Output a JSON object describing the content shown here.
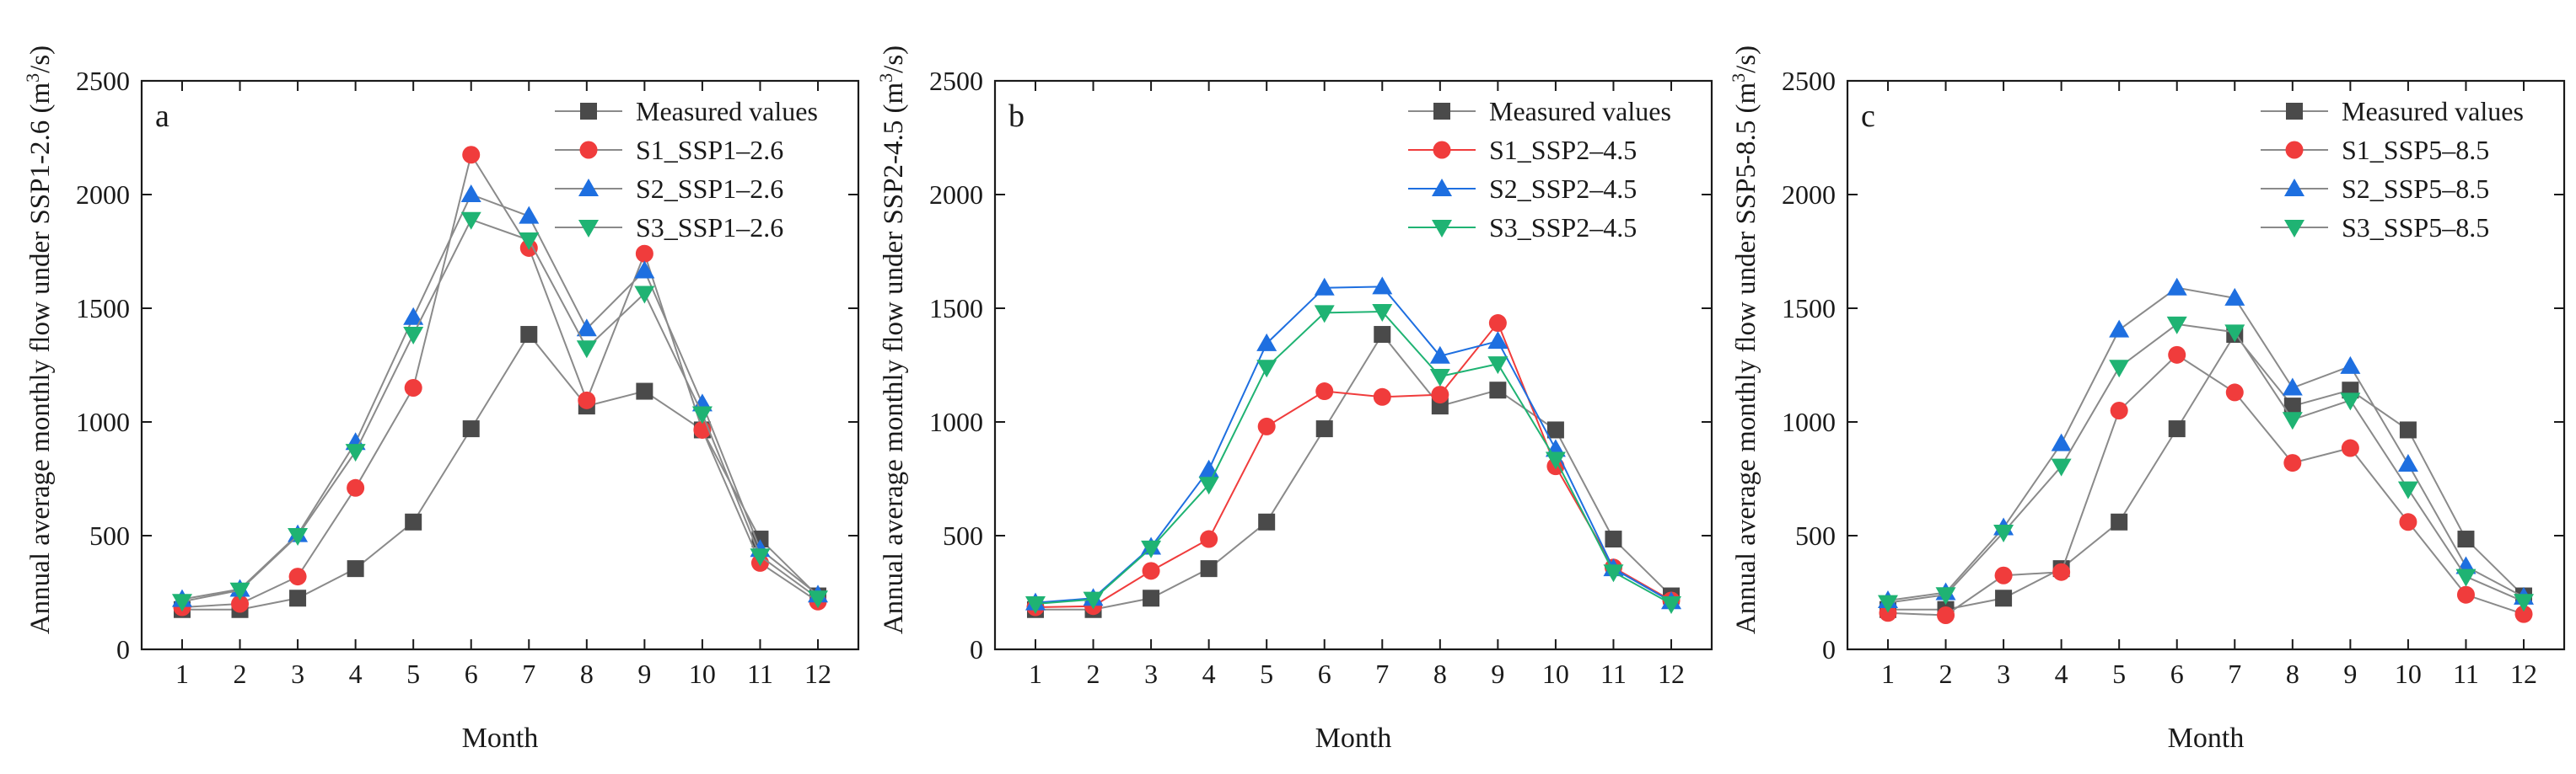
{
  "colors": {
    "measured": "#4a4a4a",
    "s1": "#f03c3c",
    "s2": "#1e6fe0",
    "s3": "#1fb373",
    "axis": "#1a1a1a",
    "connector": "#8a8a8a"
  },
  "chart_data": [
    {
      "type": "line",
      "panel_label": "a",
      "xlabel": "Month",
      "ylabel_prefix": "Annual average monthly flow under SSP1-2.6",
      "ylabel_unit_open": "(m",
      "ylabel_unit_sup": "3",
      "ylabel_unit_close": "/s)",
      "categories": [
        "1",
        "2",
        "3",
        "4",
        "5",
        "6",
        "7",
        "8",
        "9",
        "10",
        "11",
        "12"
      ],
      "ylim": [
        0,
        2500
      ],
      "yticks": [
        "0",
        "500",
        "1000",
        "1500",
        "2000",
        "2500"
      ],
      "legend_position": "top-right",
      "series": [
        {
          "name": "Measured values",
          "key": "measured",
          "marker": "square",
          "values": [
            175,
            175,
            225,
            355,
            560,
            970,
            1385,
            1070,
            1135,
            965,
            485,
            235
          ]
        },
        {
          "name": "S1_SSP1–2.6",
          "key": "s1",
          "marker": "circle",
          "values": [
            185,
            200,
            320,
            710,
            1150,
            2175,
            1765,
            1095,
            1740,
            965,
            380,
            210
          ]
        },
        {
          "name": "S2_SSP1–2.6",
          "key": "s2",
          "marker": "triangle-up",
          "values": [
            220,
            265,
            505,
            910,
            1460,
            2000,
            1905,
            1410,
            1665,
            1080,
            440,
            240
          ]
        },
        {
          "name": "S3_SSP1–2.6",
          "key": "s3",
          "marker": "triangle-down",
          "values": [
            210,
            260,
            500,
            870,
            1385,
            1890,
            1800,
            1325,
            1565,
            1035,
            410,
            225
          ]
        }
      ]
    },
    {
      "type": "line",
      "panel_label": "b",
      "xlabel": "Month",
      "ylabel_prefix": "Annual average monthly flow under SSP2-4.5",
      "ylabel_unit_open": "(m",
      "ylabel_unit_sup": "3",
      "ylabel_unit_close": "/s)",
      "categories": [
        "1",
        "2",
        "3",
        "4",
        "5",
        "6",
        "7",
        "8",
        "9",
        "10",
        "11",
        "12"
      ],
      "ylim": [
        0,
        2500
      ],
      "yticks": [
        "0",
        "500",
        "1000",
        "1500",
        "2000",
        "2500"
      ],
      "legend_position": "top-right",
      "series": [
        {
          "name": "Measured values",
          "key": "measured",
          "marker": "square",
          "values": [
            175,
            175,
            225,
            355,
            560,
            970,
            1385,
            1070,
            1140,
            965,
            485,
            235
          ]
        },
        {
          "name": "S1_SSP2–4.5",
          "key": "s1",
          "marker": "circle",
          "values": [
            185,
            190,
            345,
            485,
            980,
            1135,
            1110,
            1120,
            1435,
            805,
            360,
            215
          ]
        },
        {
          "name": "S2_SSP2–4.5",
          "key": "s2",
          "marker": "triangle-up",
          "values": [
            205,
            225,
            450,
            790,
            1345,
            1590,
            1595,
            1290,
            1355,
            880,
            355,
            210
          ]
        },
        {
          "name": "S3_SSP2–4.5",
          "key": "s3",
          "marker": "triangle-down",
          "values": [
            200,
            220,
            445,
            725,
            1240,
            1480,
            1485,
            1200,
            1255,
            835,
            340,
            200
          ]
        }
      ]
    },
    {
      "type": "line",
      "panel_label": "c",
      "xlabel": "Month",
      "ylabel_prefix": "Annual average monthly flow under SSP5-8.5",
      "ylabel_unit_open": "(m",
      "ylabel_unit_sup": "3",
      "ylabel_unit_close": "/s)",
      "categories": [
        "1",
        "2",
        "3",
        "4",
        "5",
        "6",
        "7",
        "8",
        "9",
        "10",
        "11",
        "12"
      ],
      "ylim": [
        0,
        2500
      ],
      "yticks": [
        "0",
        "500",
        "1000",
        "1500",
        "2000",
        "2500"
      ],
      "legend_position": "top-right",
      "series": [
        {
          "name": "Measured values",
          "key": "measured",
          "marker": "square",
          "values": [
            175,
            175,
            225,
            355,
            560,
            970,
            1385,
            1070,
            1140,
            965,
            485,
            235
          ]
        },
        {
          "name": "S1_SSP5–8.5",
          "key": "s1",
          "marker": "circle",
          "values": [
            160,
            150,
            325,
            340,
            1050,
            1295,
            1130,
            820,
            885,
            560,
            240,
            155
          ]
        },
        {
          "name": "S2_SSP5–8.5",
          "key": "s2",
          "marker": "triangle-up",
          "values": [
            215,
            250,
            535,
            905,
            1405,
            1590,
            1545,
            1150,
            1245,
            815,
            365,
            230
          ]
        },
        {
          "name": "S3_SSP5–8.5",
          "key": "s3",
          "marker": "triangle-down",
          "values": [
            205,
            240,
            515,
            805,
            1240,
            1430,
            1395,
            1010,
            1095,
            705,
            320,
            210
          ]
        }
      ]
    }
  ]
}
